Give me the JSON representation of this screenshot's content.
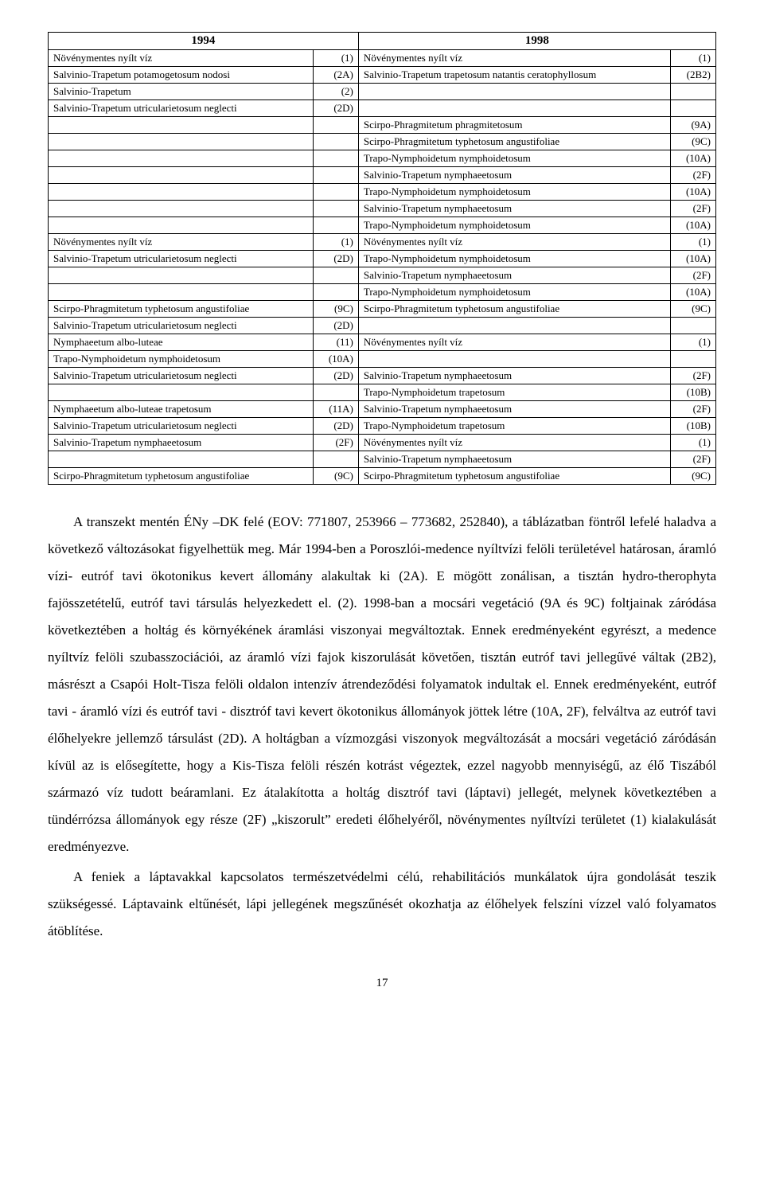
{
  "table": {
    "header": {
      "year_left": "1994",
      "year_right": "1998"
    },
    "rows": [
      {
        "l_text": "Növénymentes nyílt víz",
        "l_code": "(1)",
        "r_text": "Növénymentes nyílt víz",
        "r_code": "(1)"
      },
      {
        "l_text": "Salvinio-Trapetum potamogetosum nodosi",
        "l_code": "(2A)",
        "r_text": "Salvinio-Trapetum trapetosum natantis ceratophyllosum",
        "r_code": "(2B2)"
      },
      {
        "l_text": "Salvinio-Trapetum",
        "l_code": "(2)",
        "r_text": "",
        "r_code": ""
      },
      {
        "l_text": "Salvinio-Trapetum utricularietosum neglecti",
        "l_code": "(2D)",
        "r_text": "",
        "r_code": ""
      },
      {
        "l_text": "",
        "l_code": "",
        "r_text": "Scirpo-Phragmitetum phragmitetosum",
        "r_code": "(9A)"
      },
      {
        "l_text": "",
        "l_code": "",
        "r_text": "Scirpo-Phragmitetum typhetosum angustifoliae",
        "r_code": "(9C)"
      },
      {
        "l_text": "",
        "l_code": "",
        "r_text": "Trapo-Nymphoidetum nymphoidetosum",
        "r_code": "(10A)"
      },
      {
        "l_text": "",
        "l_code": "",
        "r_text": "Salvinio-Trapetum nymphaeetosum",
        "r_code": "(2F)"
      },
      {
        "l_text": "",
        "l_code": "",
        "r_text": "Trapo-Nymphoidetum nymphoidetosum",
        "r_code": "(10A)"
      },
      {
        "l_text": "",
        "l_code": "",
        "r_text": "Salvinio-Trapetum nymphaeetosum",
        "r_code": "(2F)"
      },
      {
        "l_text": "",
        "l_code": "",
        "r_text": "Trapo-Nymphoidetum nymphoidetosum",
        "r_code": "(10A)"
      },
      {
        "l_text": "Növénymentes nyílt víz",
        "l_code": "(1)",
        "r_text": "Növénymentes nyílt víz",
        "r_code": "(1)"
      },
      {
        "l_text": "Salvinio-Trapetum utricularietosum neglecti",
        "l_code": "(2D)",
        "r_text": "Trapo-Nymphoidetum nymphoidetosum",
        "r_code": "(10A)"
      },
      {
        "l_text": "",
        "l_code": "",
        "r_text": "Salvinio-Trapetum nymphaeetosum",
        "r_code": "(2F)"
      },
      {
        "l_text": "",
        "l_code": "",
        "r_text": "Trapo-Nymphoidetum nymphoidetosum",
        "r_code": "(10A)"
      },
      {
        "l_text": "Scirpo-Phragmitetum typhetosum angustifoliae",
        "l_code": "(9C)",
        "r_text": "Scirpo-Phragmitetum typhetosum angustifoliae",
        "r_code": "(9C)"
      },
      {
        "l_text": "Salvinio-Trapetum utricularietosum neglecti",
        "l_code": "(2D)",
        "r_text": "",
        "r_code": ""
      },
      {
        "l_text": "Nymphaeetum albo-luteae",
        "l_code": "(11)",
        "r_text": "Növénymentes nyílt víz",
        "r_code": "(1)"
      },
      {
        "l_text": "Trapo-Nymphoidetum nymphoidetosum",
        "l_code": "(10A)",
        "r_text": "",
        "r_code": ""
      },
      {
        "l_text": "Salvinio-Trapetum utricularietosum neglecti",
        "l_code": "(2D)",
        "r_text": "Salvinio-Trapetum nymphaeetosum",
        "r_code": "(2F)"
      },
      {
        "l_text": "",
        "l_code": "",
        "r_text": "Trapo-Nymphoidetum trapetosum",
        "r_code": "(10B)"
      },
      {
        "l_text": "Nymphaeetum albo-luteae trapetosum",
        "l_code": "(11A)",
        "r_text": "Salvinio-Trapetum nymphaeetosum",
        "r_code": "(2F)"
      },
      {
        "l_text": "Salvinio-Trapetum utricularietosum neglecti",
        "l_code": "(2D)",
        "r_text": "Trapo-Nymphoidetum trapetosum",
        "r_code": "(10B)"
      },
      {
        "l_text": "Salvinio-Trapetum nymphaeetosum",
        "l_code": "(2F)",
        "r_text": "Növénymentes nyílt víz",
        "r_code": "(1)"
      },
      {
        "l_text": "",
        "l_code": "",
        "r_text": "Salvinio-Trapetum nymphaeetosum",
        "r_code": "(2F)"
      },
      {
        "l_text": "Scirpo-Phragmitetum typhetosum angustifoliae",
        "l_code": "(9C)",
        "r_text": "Scirpo-Phragmitetum typhetosum angustifoliae",
        "r_code": "(9C)"
      }
    ]
  },
  "body": {
    "p1": "A transzekt mentén ÉNy –DK felé (EOV: 771807, 253966 – 773682, 252840), a táblázatban föntről lefelé haladva a következő változásokat figyelhettük meg. Már 1994-ben a Poroszlói-medence nyíltvízi felöli területével határosan, áramló vízi- eutróf tavi ökotonikus kevert állomány alakultak ki (2A).  E mögött zonálisan, a tisztán hydro-therophyta fajösszetételű, eutróf tavi társulás helyezkedett el. (2). 1998-ban a mocsári vegetáció (9A és 9C) foltjainak záródása következtében a holtág és környékének áramlási viszonyai megváltoztak. Ennek eredményeként egyrészt, a medence nyíltvíz felöli szubasszociációi, az áramló vízi fajok kiszorulását követően, tisztán eutróf tavi jellegűvé váltak (2B2), másrészt a Csapói Holt-Tisza felöli oldalon intenzív átrendeződési folyamatok indultak el. Ennek eredményeként, eutróf tavi - áramló vízi és eutróf tavi - disztróf tavi kevert ökotonikus állományok jöttek létre (10A, 2F), felváltva az eutróf tavi élőhelyekre jellemző társulást (2D). A holtágban a vízmozgási viszonyok megváltozását a mocsári vegetáció záródásán kívül az is elősegítette, hogy a Kis-Tisza felöli részén kotrást végeztek, ezzel nagyobb mennyiségű, az élő Tiszából származó víz tudott beáramlani. Ez átalakította a holtág disztróf tavi (láptavi) jellegét, melynek következtében a tündérrózsa állományok egy része (2F) „kiszorult” eredeti élőhelyéről, növénymentes nyíltvízi területet (1) kialakulását eredményezve.",
    "p2": "A feniek a láptavakkal kapcsolatos természetvédelmi célú, rehabilitációs munkálatok újra gondolását teszik szükségessé. Láptavaink eltűnését, lápi jellegének megszűnését okozhatja az élőhelyek felszíni vízzel való folyamatos átöblítése."
  },
  "page_number": "17"
}
